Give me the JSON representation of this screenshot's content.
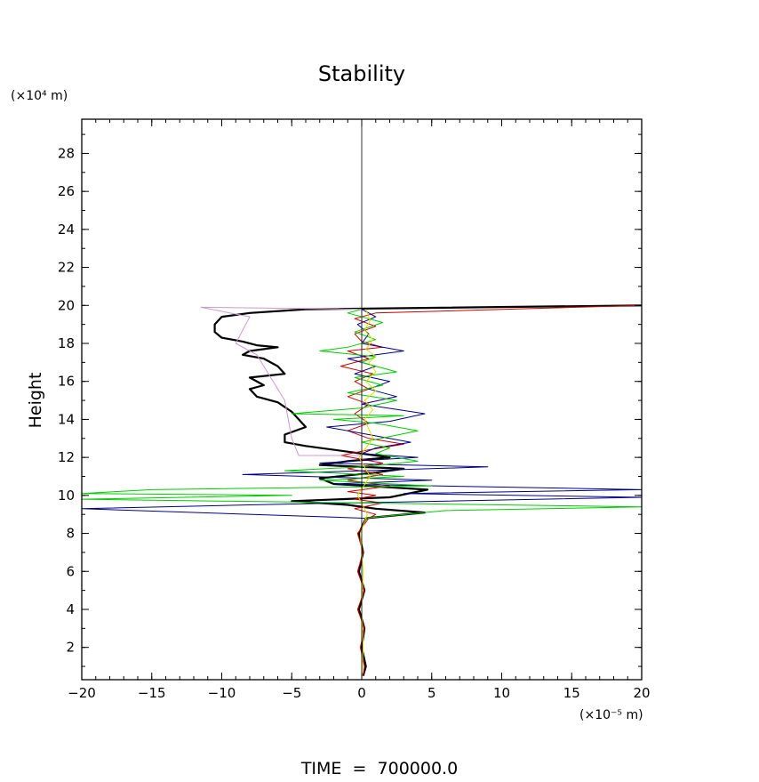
{
  "chart_data": {
    "type": "line",
    "title": "Stability",
    "ylabel": "Height",
    "y_unit_label": "(×10⁴ m)",
    "x_unit_label": "(×10⁻⁵ m)",
    "footer": "TIME  =  700000.0",
    "xlim": [
      -20,
      20
    ],
    "ylim": [
      0.3,
      29.8
    ],
    "x_ticks": [
      -20,
      -15,
      -10,
      -5,
      0,
      5,
      10,
      15,
      20
    ],
    "x_tick_labels": [
      "−20",
      "−15",
      "−10",
      "−5",
      "0",
      "5",
      "10",
      "15",
      "20"
    ],
    "y_ticks": [
      2,
      4,
      6,
      8,
      10,
      12,
      14,
      16,
      18,
      20,
      22,
      24,
      26,
      28
    ],
    "y_tick_labels": [
      "2",
      "4",
      "6",
      "8",
      "10",
      "12",
      "14",
      "16",
      "18",
      "20",
      "22",
      "24",
      "26",
      "28"
    ],
    "grid": false,
    "legend": "none",
    "series": [
      {
        "color": "#000000",
        "width": 2.2,
        "points": [
          [
            0.1,
            0.5
          ],
          [
            0.3,
            1
          ],
          [
            0,
            2
          ],
          [
            0.2,
            3
          ],
          [
            -0.2,
            4
          ],
          [
            0.2,
            5
          ],
          [
            -0.2,
            6
          ],
          [
            0.1,
            7
          ],
          [
            -0.2,
            8
          ],
          [
            0.3,
            8.8
          ],
          [
            4.5,
            9.1
          ],
          [
            1,
            9.3
          ],
          [
            -1,
            9.5
          ],
          [
            -5,
            9.7
          ],
          [
            2,
            9.9
          ],
          [
            4.7,
            10.3
          ],
          [
            -2,
            10.6
          ],
          [
            -3,
            10.9
          ],
          [
            1,
            11.2
          ],
          [
            3,
            11.4
          ],
          [
            -3,
            11.6
          ],
          [
            -1,
            11.8
          ],
          [
            2,
            12
          ],
          [
            -4,
            12.6
          ],
          [
            -5.5,
            12.8
          ],
          [
            -5.5,
            13.2
          ],
          [
            -4,
            13.6
          ],
          [
            -5,
            14.4
          ],
          [
            -6,
            14.9
          ],
          [
            -7.5,
            15.2
          ],
          [
            -8,
            15.6
          ],
          [
            -7,
            15.8
          ],
          [
            -8,
            16.2
          ],
          [
            -5.5,
            16.4
          ],
          [
            -6,
            16.8
          ],
          [
            -7,
            17.2
          ],
          [
            -8.5,
            17.4
          ],
          [
            -8,
            17.6
          ],
          [
            -6,
            17.8
          ],
          [
            -7.5,
            17.9
          ],
          [
            -8.5,
            18.1
          ],
          [
            -10,
            18.3
          ],
          [
            -10.5,
            18.6
          ],
          [
            -10.5,
            19
          ],
          [
            -10,
            19.4
          ],
          [
            -8,
            19.6
          ],
          [
            -4,
            19.8
          ],
          [
            20,
            20
          ]
        ]
      },
      {
        "color": "#cc0000",
        "width": 1,
        "points": [
          [
            0.1,
            0.5
          ],
          [
            0.2,
            1
          ],
          [
            -0.1,
            2
          ],
          [
            0.2,
            3
          ],
          [
            -0.3,
            4
          ],
          [
            0.2,
            5
          ],
          [
            -0.3,
            6
          ],
          [
            0.1,
            7
          ],
          [
            -0.3,
            8
          ],
          [
            0.5,
            8.8
          ],
          [
            1,
            9.0
          ],
          [
            -0.5,
            9.3
          ],
          [
            1.5,
            9.6
          ],
          [
            -0.5,
            9.8
          ],
          [
            1,
            10.0
          ],
          [
            -1,
            10.2
          ],
          [
            2,
            10.5
          ],
          [
            -1,
            10.8
          ],
          [
            1.5,
            11.1
          ],
          [
            -1,
            11.4
          ],
          [
            1.5,
            11.7
          ],
          [
            -1.5,
            12.1
          ],
          [
            0.5,
            12.4
          ],
          [
            3,
            12.7
          ],
          [
            0.5,
            13
          ],
          [
            -1,
            13.4
          ],
          [
            0.5,
            13.8
          ],
          [
            -0.5,
            14.3
          ],
          [
            0.5,
            14.8
          ],
          [
            -1,
            15.2
          ],
          [
            0.5,
            15.6
          ],
          [
            -0.5,
            16
          ],
          [
            0.8,
            16.4
          ],
          [
            -1.5,
            16.8
          ],
          [
            0.5,
            17.2
          ],
          [
            -1,
            17.6
          ],
          [
            1.5,
            17.8
          ],
          [
            0,
            18.1
          ],
          [
            -0.5,
            18.5
          ],
          [
            1,
            18.9
          ],
          [
            -0.5,
            19.3
          ],
          [
            1,
            19.6
          ],
          [
            20,
            20
          ]
        ]
      },
      {
        "color": "#000088",
        "width": 1,
        "points": [
          [
            0.2,
            8.8
          ],
          [
            -20,
            9.3
          ],
          [
            -8,
            9.5
          ],
          [
            20,
            9.9
          ],
          [
            3,
            10.1
          ],
          [
            20,
            10.3
          ],
          [
            -2,
            10.6
          ],
          [
            5,
            10.8
          ],
          [
            -8.5,
            11.1
          ],
          [
            9,
            11.5
          ],
          [
            -3,
            11.7
          ],
          [
            4,
            12
          ],
          [
            0,
            12.2
          ],
          [
            1,
            12.5
          ],
          [
            3.5,
            12.8
          ],
          [
            0.5,
            13.2
          ],
          [
            -2.5,
            13.6
          ],
          [
            2,
            13.9
          ],
          [
            4.5,
            14.3
          ],
          [
            0,
            14.8
          ],
          [
            2.5,
            15.2
          ],
          [
            0.5,
            15.6
          ],
          [
            2,
            16
          ],
          [
            -0.5,
            16.4
          ],
          [
            1,
            16.8
          ],
          [
            -1,
            17.2
          ],
          [
            3,
            17.6
          ],
          [
            0,
            18
          ],
          [
            0.5,
            18.5
          ],
          [
            -0.3,
            19
          ],
          [
            1,
            19.4
          ],
          [
            0,
            19.8
          ]
        ]
      },
      {
        "color": "#00cc00",
        "width": 1,
        "points": [
          [
            0.2,
            8.8
          ],
          [
            6,
            9.2
          ],
          [
            20,
            9.4
          ],
          [
            -20,
            9.8
          ],
          [
            -5,
            10
          ],
          [
            -20,
            10.1
          ],
          [
            -15,
            10.3
          ],
          [
            5,
            10.5
          ],
          [
            -3,
            10.8
          ],
          [
            3,
            11
          ],
          [
            -5.5,
            11.3
          ],
          [
            0,
            11.5
          ],
          [
            4,
            11.8
          ],
          [
            1,
            12.2
          ],
          [
            2,
            12.5
          ],
          [
            0,
            12.8
          ],
          [
            4,
            13.4
          ],
          [
            1,
            13.8
          ],
          [
            -2,
            14
          ],
          [
            3,
            14.2
          ],
          [
            -5,
            14.3
          ],
          [
            0,
            14.6
          ],
          [
            2.5,
            15
          ],
          [
            -1,
            15.4
          ],
          [
            1.5,
            15.8
          ],
          [
            -0.5,
            16.2
          ],
          [
            2.5,
            16.5
          ],
          [
            0,
            17
          ],
          [
            1,
            17.3
          ],
          [
            -3,
            17.6
          ],
          [
            -1,
            17.8
          ],
          [
            1,
            18.2
          ],
          [
            -0.5,
            18.6
          ],
          [
            1.5,
            19.1
          ],
          [
            -1,
            19.6
          ],
          [
            0,
            19.8
          ]
        ]
      },
      {
        "color": "#dddd00",
        "width": 1,
        "points": [
          [
            0,
            0.5
          ],
          [
            0.1,
            2
          ],
          [
            0,
            4
          ],
          [
            0.1,
            6
          ],
          [
            -0.1,
            8
          ],
          [
            0.4,
            9
          ],
          [
            -0.3,
            10
          ],
          [
            0.6,
            11
          ],
          [
            -0.2,
            12
          ],
          [
            0.8,
            13
          ],
          [
            0.2,
            14
          ],
          [
            0.8,
            14.5
          ],
          [
            0.2,
            15
          ],
          [
            1,
            15.5
          ],
          [
            0.3,
            16
          ],
          [
            1,
            16.5
          ],
          [
            0.5,
            17
          ],
          [
            1,
            17.3
          ],
          [
            0.3,
            17.7
          ],
          [
            0.8,
            18.2
          ],
          [
            0.2,
            18.7
          ],
          [
            0.6,
            19.2
          ],
          [
            0.3,
            19.8
          ]
        ]
      },
      {
        "color": "#cc99cc",
        "width": 1,
        "points": [
          [
            -11.5,
            19.9
          ],
          [
            -8,
            19.4
          ],
          [
            -9,
            18
          ],
          [
            -7.5,
            17.4
          ],
          [
            -5.5,
            15
          ],
          [
            -5,
            13
          ],
          [
            -4.5,
            12.1
          ],
          [
            0,
            12.1
          ],
          [
            0,
            19.8
          ],
          [
            -11.5,
            19.9
          ]
        ]
      },
      {
        "color": "#000000",
        "width": 0.8,
        "points": [
          [
            0,
            0.5
          ],
          [
            0,
            29.5
          ]
        ]
      }
    ]
  }
}
